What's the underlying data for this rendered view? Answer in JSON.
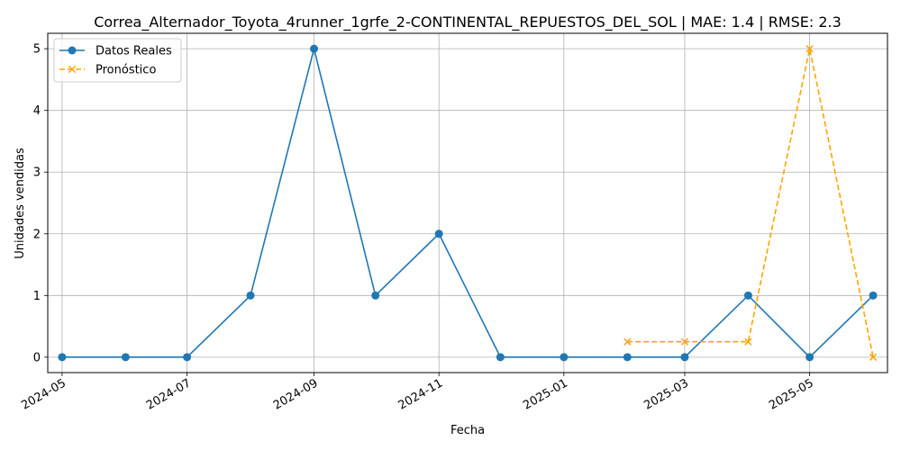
{
  "chart_data": {
    "type": "line",
    "title": "Correa_Alternador_Toyota_4runner_1grfe_2-CONTINENTAL_REPUESTOS_DEL_SOL | MAE: 1.4 | RMSE: 2.3",
    "xlabel": "Fecha",
    "ylabel": "Unidades vendidas",
    "ylim": [
      -0.25,
      5.25
    ],
    "yticks": [
      0,
      1,
      2,
      3,
      4,
      5
    ],
    "xlim": [
      "2024-04-24",
      "2025-06-08"
    ],
    "xticks": [
      "2024-05",
      "2024-07",
      "2024-09",
      "2024-11",
      "2025-01",
      "2025-03",
      "2025-05"
    ],
    "grid": true,
    "legend_position": "top-left",
    "series": [
      {
        "name": "Datos Reales",
        "color": "#1f77b4",
        "marker": "circle",
        "linestyle": "solid",
        "x": [
          "2024-05-01",
          "2024-06-01",
          "2024-07-01",
          "2024-08-01",
          "2024-09-01",
          "2024-10-01",
          "2024-11-01",
          "2024-12-01",
          "2025-01-01",
          "2025-02-01",
          "2025-03-01",
          "2025-04-01",
          "2025-05-01",
          "2025-06-01"
        ],
        "values": [
          0,
          0,
          0,
          1,
          5,
          1,
          2,
          0,
          0,
          0,
          0,
          1,
          0,
          1
        ]
      },
      {
        "name": "Pronóstico",
        "color": "#ffa500",
        "marker": "x",
        "linestyle": "dashed",
        "x": [
          "2025-02-01",
          "2025-03-01",
          "2025-04-01",
          "2025-05-01",
          "2025-06-01"
        ],
        "values": [
          0.25,
          0.25,
          0.25,
          5,
          0
        ]
      }
    ]
  }
}
